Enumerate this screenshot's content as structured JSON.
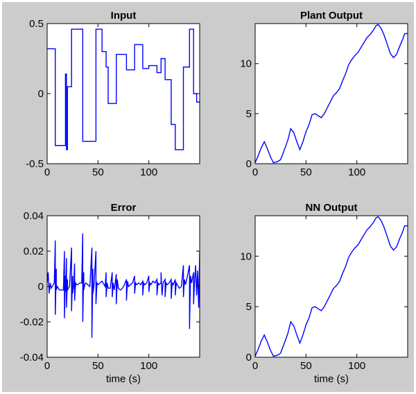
{
  "figure": {
    "background": "#cccccc",
    "line_color": "#0000ff"
  },
  "chart_data": [
    {
      "type": "line",
      "title": "Input",
      "xlabel": "",
      "ylabel": "",
      "xlim": [
        0,
        150
      ],
      "ylim": [
        -0.5,
        0.5
      ],
      "xticks": [
        0,
        50,
        100
      ],
      "yticks": [
        -0.5,
        0,
        0.5
      ],
      "ytick_labels": [
        "-0.5",
        "0",
        "0.5"
      ],
      "grid": false,
      "series": [
        {
          "x": [
            0,
            8,
            8,
            18,
            18,
            19,
            19,
            20,
            20,
            24,
            24,
            27,
            27,
            35,
            35,
            44,
            44,
            48,
            48,
            54,
            54,
            58,
            58,
            60,
            60,
            64,
            64,
            68,
            68,
            78,
            78,
            86,
            86,
            94,
            94,
            100,
            100,
            108,
            108,
            112,
            112,
            116,
            116,
            122,
            122,
            126,
            126,
            134,
            134,
            140,
            140,
            144,
            144,
            147,
            147,
            150
          ],
          "y": [
            0.32,
            0.32,
            -0.37,
            -0.37,
            0.14,
            0.14,
            -0.4,
            -0.4,
            0.05,
            0.05,
            0.46,
            0.46,
            0.46,
            0.46,
            -0.34,
            -0.34,
            -0.34,
            -0.34,
            0.46,
            0.46,
            0.3,
            0.3,
            0.19,
            0.19,
            -0.07,
            -0.07,
            -0.07,
            -0.07,
            0.28,
            0.28,
            0.17,
            0.17,
            0.35,
            0.35,
            0.18,
            0.18,
            0.2,
            0.2,
            0.15,
            0.15,
            0.25,
            0.25,
            0.1,
            0.1,
            -0.22,
            -0.22,
            -0.4,
            -0.4,
            0.19,
            0.19,
            0.46,
            0.46,
            0.0,
            0.0,
            -0.06,
            -0.06
          ]
        }
      ]
    },
    {
      "type": "line",
      "title": "Plant Output",
      "xlabel": "",
      "ylabel": "",
      "xlim": [
        0,
        150
      ],
      "ylim": [
        0,
        14
      ],
      "xticks": [
        0,
        50,
        100
      ],
      "yticks": [
        0,
        5,
        10
      ],
      "ytick_labels": [
        "0",
        "5",
        "10"
      ],
      "grid": false,
      "series": [
        {
          "x": [
            0,
            3,
            6,
            9,
            12,
            15,
            18,
            22,
            25,
            28,
            32,
            35,
            38,
            41,
            44,
            47,
            50,
            53,
            56,
            59,
            62,
            65,
            68,
            71,
            74,
            77,
            80,
            83,
            86,
            89,
            92,
            95,
            98,
            101,
            104,
            107,
            110,
            113,
            116,
            119,
            121,
            124,
            127,
            130,
            133,
            136,
            139,
            142,
            145,
            147,
            150
          ],
          "y": [
            0.1,
            0.8,
            1.6,
            2.2,
            1.5,
            0.7,
            0.1,
            0.2,
            0.4,
            1.2,
            2.3,
            3.5,
            3.1,
            2.2,
            1.4,
            2.2,
            3.2,
            3.9,
            4.9,
            5.0,
            4.8,
            4.6,
            5.0,
            5.6,
            6.2,
            6.8,
            7.1,
            7.5,
            8.3,
            9.0,
            9.9,
            10.4,
            10.8,
            11.1,
            11.6,
            12.1,
            12.6,
            12.9,
            13.3,
            13.8,
            13.9,
            13.5,
            12.8,
            11.9,
            11.0,
            10.6,
            10.9,
            11.7,
            12.4,
            13.0,
            13.0
          ]
        }
      ]
    },
    {
      "type": "line",
      "title": "Error",
      "xlabel": "time (s)",
      "ylabel": "",
      "xlim": [
        0,
        150
      ],
      "ylim": [
        -0.04,
        0.04
      ],
      "xticks": [
        0,
        50,
        100
      ],
      "yticks": [
        -0.04,
        -0.02,
        0,
        0.02,
        0.04
      ],
      "ytick_labels": [
        "-0.04",
        "-0.02",
        "0",
        "0.02",
        "0.04"
      ],
      "grid": false,
      "series": [
        {
          "x": [
            0,
            1,
            2,
            3,
            4,
            5,
            6,
            7,
            8,
            8,
            9,
            9,
            10,
            11,
            12,
            14,
            16,
            17,
            17,
            18,
            18,
            19,
            19,
            20,
            20,
            21,
            22,
            24,
            24,
            25,
            25,
            26,
            27,
            27,
            28,
            29,
            30,
            32,
            34,
            35,
            35,
            36,
            36,
            37,
            38,
            40,
            42,
            44,
            44,
            45,
            45,
            46,
            48,
            48,
            49,
            50,
            52,
            54,
            55,
            56,
            57,
            58,
            58,
            59,
            60,
            62,
            64,
            64,
            65,
            66,
            68,
            68,
            69,
            70,
            72,
            74,
            76,
            78,
            78,
            79,
            80,
            82,
            84,
            86,
            86,
            87,
            88,
            90,
            92,
            94,
            94,
            95,
            96,
            98,
            100,
            100,
            101,
            102,
            104,
            106,
            108,
            108,
            109,
            110,
            112,
            112,
            113,
            114,
            116,
            116,
            117,
            118,
            120,
            122,
            122,
            123,
            124,
            126,
            126,
            127,
            128,
            130,
            132,
            134,
            134,
            135,
            136,
            138,
            140,
            140,
            141,
            142,
            144,
            144,
            145,
            146,
            147,
            148,
            149,
            150
          ],
          "y": [
            0.002,
            0.008,
            -0.004,
            0.002,
            -0.001,
            0.0,
            0.001,
            0.002,
            0.026,
            -0.016,
            0.01,
            -0.002,
            0.0,
            -0.001,
            -0.002,
            -0.002,
            -0.002,
            0.02,
            -0.018,
            0.006,
            -0.003,
            0.016,
            -0.012,
            0.004,
            -0.002,
            -0.001,
            0.0,
            0.022,
            -0.014,
            0.006,
            -0.004,
            0.0,
            0.013,
            -0.008,
            0.002,
            0.001,
            0.001,
            0.002,
            0.002,
            0.03,
            -0.02,
            0.008,
            -0.002,
            0.001,
            0.002,
            0.001,
            0.0,
            0.022,
            -0.029,
            0.01,
            -0.004,
            0.0,
            0.02,
            -0.01,
            0.002,
            0.001,
            0.002,
            0.003,
            0.002,
            0.001,
            0.0,
            0.008,
            -0.006,
            0.002,
            -0.001,
            -0.001,
            0.008,
            -0.006,
            0.002,
            -0.002,
            0.007,
            -0.01,
            0.004,
            -0.001,
            -0.002,
            -0.001,
            0.001,
            0.004,
            -0.008,
            0.003,
            0.0,
            0.001,
            0.002,
            0.006,
            -0.004,
            0.002,
            0.001,
            0.002,
            0.001,
            0.003,
            -0.005,
            0.002,
            0.001,
            0.002,
            0.006,
            -0.003,
            0.002,
            0.001,
            0.003,
            0.002,
            0.004,
            -0.005,
            0.002,
            0.001,
            0.002,
            0.008,
            -0.005,
            0.002,
            0.004,
            -0.006,
            0.002,
            0.001,
            0.002,
            0.004,
            -0.007,
            0.002,
            0.001,
            0.004,
            -0.005,
            0.002,
            0.001,
            -0.001,
            0.0,
            0.012,
            -0.006,
            0.004,
            0.001,
            0.006,
            0.012,
            -0.024,
            0.006,
            0.002,
            0.008,
            -0.01,
            0.003,
            0.012,
            -0.005,
            0.009,
            -0.012,
            0.02
          ]
        }
      ]
    },
    {
      "type": "line",
      "title": "NN Output",
      "xlabel": "time (s)",
      "ylabel": "",
      "xlim": [
        0,
        150
      ],
      "ylim": [
        0,
        14
      ],
      "xticks": [
        0,
        50,
        100
      ],
      "yticks": [
        0,
        5,
        10
      ],
      "ytick_labels": [
        "0",
        "5",
        "10"
      ],
      "grid": false,
      "series": [
        {
          "x": [
            0,
            3,
            6,
            9,
            12,
            15,
            18,
            22,
            25,
            28,
            32,
            35,
            38,
            41,
            44,
            47,
            50,
            53,
            56,
            59,
            62,
            65,
            68,
            71,
            74,
            77,
            80,
            83,
            86,
            89,
            92,
            95,
            98,
            101,
            104,
            107,
            110,
            113,
            116,
            119,
            121,
            124,
            127,
            130,
            133,
            136,
            139,
            142,
            145,
            147,
            150
          ],
          "y": [
            0.1,
            0.8,
            1.6,
            2.2,
            1.5,
            0.7,
            0.1,
            0.2,
            0.4,
            1.2,
            2.3,
            3.5,
            3.1,
            2.2,
            1.4,
            2.2,
            3.2,
            3.9,
            4.9,
            5.0,
            4.8,
            4.6,
            5.0,
            5.6,
            6.2,
            6.8,
            7.1,
            7.5,
            8.3,
            9.0,
            9.9,
            10.4,
            10.8,
            11.1,
            11.6,
            12.1,
            12.6,
            12.9,
            13.3,
            13.8,
            13.9,
            13.5,
            12.8,
            11.9,
            11.0,
            10.6,
            10.9,
            11.7,
            12.4,
            13.0,
            13.0
          ]
        }
      ]
    }
  ]
}
